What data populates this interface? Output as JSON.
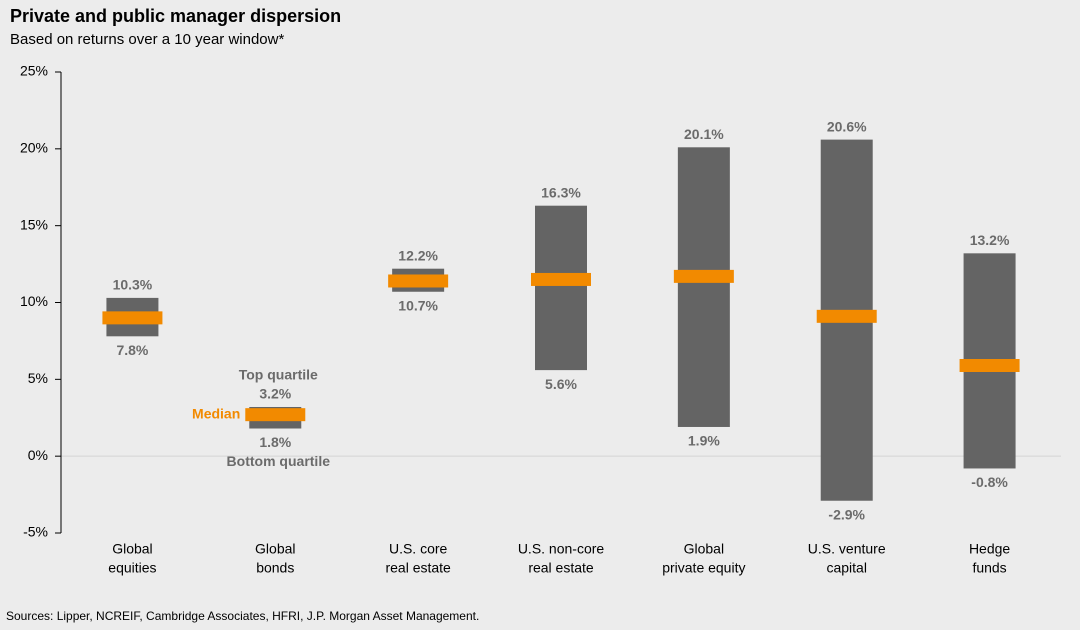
{
  "chart_data": {
    "type": "floating-range",
    "title": "Private and public manager dispersion",
    "subtitle": "Based on returns over a 10 year window*",
    "source": "Sources: Lipper, NCREIF, Cambridge Associates, HFRI, J.P. Morgan Asset Management.",
    "categories": [
      [
        "Global",
        "equities"
      ],
      [
        "Global",
        "bonds"
      ],
      [
        "U.S. core",
        "real estate"
      ],
      [
        "U.S. non-core",
        "real estate"
      ],
      [
        "Global",
        "private equity"
      ],
      [
        "U.S. venture",
        "capital"
      ],
      [
        "Hedge",
        "funds"
      ]
    ],
    "series": [
      {
        "name": "Top quartile",
        "color": "#646464",
        "values": [
          10.3,
          3.2,
          12.2,
          16.3,
          20.1,
          20.6,
          13.2
        ],
        "value_labels": [
          "10.3%",
          "3.2%",
          "12.2%",
          "16.3%",
          "20.1%",
          "20.6%",
          "13.2%"
        ]
      },
      {
        "name": "Bottom quartile",
        "color": "#646464",
        "values": [
          7.8,
          1.8,
          10.7,
          5.6,
          1.9,
          -2.9,
          -0.8
        ],
        "value_labels": [
          "7.8%",
          "1.8%",
          "10.7%",
          "5.6%",
          "1.9%",
          "-2.9%",
          "-0.8%"
        ]
      },
      {
        "name": "Median",
        "color": "#f28a00",
        "values": [
          9.0,
          2.7,
          11.4,
          11.5,
          11.7,
          9.1,
          5.9
        ]
      }
    ],
    "legend_category": 1,
    "ylim": [
      -5,
      25
    ],
    "yticks": [
      {
        "value": -5,
        "label": "-5%"
      },
      {
        "value": 0,
        "label": "0%"
      },
      {
        "value": 5,
        "label": "5%"
      },
      {
        "value": 10,
        "label": "10%"
      },
      {
        "value": 15,
        "label": "15%"
      },
      {
        "value": 20,
        "label": "20%"
      },
      {
        "value": 25,
        "label": "25%"
      }
    ]
  }
}
